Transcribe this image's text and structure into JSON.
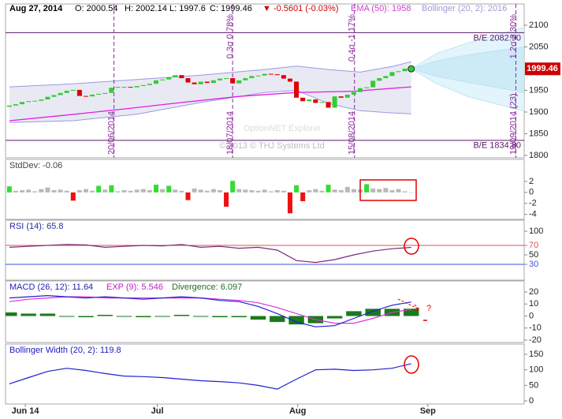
{
  "chart_data": [
    {
      "type": "candlestick",
      "header": [
        {
          "text": "Aug 27, 2014",
          "color": "#000000"
        },
        {
          "text": "O: 2000.54",
          "color": "#000000"
        },
        {
          "text": "H: 2002.14",
          "color": "#000000"
        },
        {
          "text": "L: 1997.6",
          "color": "#000000"
        },
        {
          "text": "C: 1999.46",
          "color": "#000000"
        },
        {
          "text": "▼ -0.5601 (-0.03%)",
          "color": "#d00000"
        },
        {
          "text": "EMA (50): 1958",
          "color": "#d040d0"
        },
        {
          "text": "Bollinger (20, 2): 2016",
          "color": "#9a9ad8"
        }
      ],
      "open": [
        1912,
        1915,
        1918,
        1923,
        1925,
        1926,
        1929,
        1935,
        1939,
        1944,
        1949,
        1951,
        1937,
        1936,
        1940,
        1942,
        1944,
        1956,
        1958,
        1958,
        1957,
        1960,
        1962,
        1965,
        1973,
        1975,
        1980,
        1985,
        1978,
        1968,
        1964,
        1970,
        1967,
        1973,
        1977,
        1978,
        1966,
        1973,
        1978,
        1983,
        1984,
        1988,
        1987,
        1985,
        1977,
        1970,
        1933,
        1925,
        1929,
        1921,
        1923,
        1910,
        1936,
        1933,
        1940,
        1946,
        1955,
        1957,
        1972,
        1978,
        1983,
        1992,
        1994,
        2000.54
      ],
      "close": [
        1915,
        1918,
        1923,
        1925,
        1926,
        1929,
        1935,
        1939,
        1944,
        1949,
        1951,
        1937,
        1936,
        1940,
        1942,
        1944,
        1956,
        1958,
        1958,
        1957,
        1960,
        1962,
        1965,
        1973,
        1975,
        1980,
        1985,
        1978,
        1968,
        1964,
        1970,
        1967,
        1973,
        1977,
        1978,
        1966,
        1973,
        1978,
        1983,
        1984,
        1988,
        1987,
        1985,
        1977,
        1970,
        1933,
        1925,
        1929,
        1921,
        1923,
        1910,
        1936,
        1933,
        1940,
        1946,
        1955,
        1957,
        1972,
        1978,
        1983,
        1992,
        1994,
        2000,
        1999.46
      ],
      "up_color": "#33cc33",
      "down_color": "#e00000",
      "last_price_color": "#cc0000",
      "ylim": [
        1794.5,
        2149
      ],
      "yticks": [
        1800,
        1850,
        1900,
        1950,
        2050,
        2100
      ],
      "ema": {
        "color": "#e020e0",
        "x": [
          0,
          9,
          18,
          27,
          36,
          45,
          54,
          63
        ],
        "values": [
          1880,
          1893,
          1907,
          1922,
          1936,
          1945,
          1948,
          1958
        ]
      },
      "bollinger": {
        "line_color": "#9a9ae0",
        "fill": "#e9e9f4",
        "x": [
          0,
          10,
          20,
          30,
          40,
          45,
          50,
          55,
          60,
          63
        ],
        "upper": [
          1958,
          1965,
          1975,
          1985,
          1998,
          2006,
          1998,
          1992,
          2005,
          2016
        ],
        "lower": [
          1876,
          1880,
          1895,
          1922,
          1945,
          1950,
          1920,
          1903,
          1898,
          1896
        ]
      },
      "cones": [
        {
          "fill": "#e2f5fc",
          "x": [
            63,
            67,
            72,
            80.7
          ],
          "upper": [
            1999.46,
            2035,
            2060,
            2095
          ],
          "lower": [
            1999.46,
            1965,
            1935,
            1902
          ]
        },
        {
          "fill": "#cdeaf7",
          "x": [
            63,
            67,
            72,
            80.7
          ],
          "upper": [
            1999.46,
            2018,
            2032,
            2050
          ],
          "lower": [
            1999.46,
            1982,
            1968,
            1945
          ]
        }
      ],
      "levels": [
        {
          "value": 2082.9,
          "label": "B/E 2082.90"
        },
        {
          "value": 1834.8,
          "label": "B/E 1834.80"
        }
      ],
      "level_color": "#5a1a6a",
      "expirations": [
        {
          "x": 16.4,
          "date": "20/06/2014"
        },
        {
          "x": 35.0,
          "date": "18/07/2014",
          "label": "0.3σ 0.78%"
        },
        {
          "x": 54.1,
          "date": "15/08/2014",
          "label": "0.4σ -1.17%"
        },
        {
          "x": 79.4,
          "date": "19/09/2014 (23)",
          "label": "1.2σ 2.30%"
        }
      ],
      "expiration_color": "#8a2a9a",
      "watermark": "OptionNET Explorer",
      "copyright": "© 2013 © THJ Systems Ltd"
    },
    {
      "type": "bar",
      "title": "StdDev: -0.06",
      "values": [
        1.1,
        0.3,
        0.4,
        0.5,
        0.2,
        0.6,
        0.9,
        0.4,
        0.5,
        0.3,
        -1.5,
        0.4,
        0.6,
        0.3,
        1.2,
        0.5,
        1.3,
        0.2,
        0.4,
        0.3,
        0.5,
        0.6,
        0.4,
        1.4,
        0.6,
        1.2,
        0.5,
        0.3,
        -1.4,
        0.7,
        0.5,
        0.3,
        0.6,
        0.4,
        -2.6,
        2.1,
        0.6,
        0.5,
        0.4,
        0.3,
        0.5,
        0.2,
        0.4,
        0.3,
        -3.8,
        1.3,
        -1.6,
        0.4,
        0.6,
        0.3,
        1.4,
        0.5,
        0.4,
        1.0,
        0.6,
        0.5,
        1.5,
        0.7,
        0.6,
        0.8,
        0.4,
        0.6,
        0.2,
        -0.06
      ],
      "threshold": 1,
      "up_color": "#33dd33",
      "down_color": "#ee1111",
      "neutral_color": "#b8b8b8",
      "ylim": [
        -4.9,
        6
      ],
      "yticks": [
        -4,
        -2,
        0,
        2
      ]
    },
    {
      "type": "line",
      "title": "RSI (14): 65.8",
      "title_color": "#2a2a9a",
      "x": [
        0,
        3,
        6,
        9,
        12,
        15,
        18,
        21,
        24,
        27,
        30,
        33,
        36,
        39,
        42,
        45,
        48,
        51,
        54,
        57,
        60,
        63
      ],
      "values": [
        66,
        68,
        70,
        72,
        71,
        66,
        68,
        70,
        69,
        72,
        66,
        68,
        64,
        66,
        60,
        38,
        34,
        40,
        50,
        58,
        63,
        65.8
      ],
      "color": "#7a2a7a",
      "levels": [
        {
          "value": 70,
          "color": "#e05050"
        },
        {
          "value": 30,
          "color": "#4050e0"
        }
      ],
      "ylim": [
        -3.3,
        123.3
      ],
      "yticks": [
        30,
        50,
        70,
        100
      ]
    },
    {
      "type": "macd",
      "titles": [
        {
          "text": "MACD (26, 12): 11.64",
          "color": "#2020c0"
        },
        {
          "text": "EXP (9): 5.546",
          "color": "#c020c0"
        },
        {
          "text": "Divergence: 6.097",
          "color": "#207020"
        }
      ],
      "x": [
        0,
        3,
        6,
        9,
        12,
        15,
        18,
        21,
        24,
        27,
        30,
        33,
        36,
        39,
        42,
        45,
        48,
        51,
        54,
        57,
        60,
        63
      ],
      "macd": {
        "color": "#2020d0",
        "values": [
          15,
          16,
          17,
          16,
          15,
          16,
          15,
          14,
          15,
          16,
          15,
          13,
          12,
          8,
          2,
          -5,
          -9,
          -8,
          -2,
          4,
          9,
          11.64
        ]
      },
      "signal": {
        "color": "#e030e0",
        "values": [
          12,
          14,
          15,
          16,
          16,
          15,
          15,
          15,
          15,
          15,
          15,
          14,
          13,
          11,
          7,
          2,
          -3,
          -6,
          -6,
          -2,
          3,
          5.546
        ]
      },
      "divergence": {
        "color": "#1a7a1a",
        "values": [
          3,
          2,
          2,
          0,
          -1,
          1,
          0,
          -1,
          0,
          1,
          0,
          -1,
          -1,
          -3,
          -5,
          -7,
          -6,
          -2,
          4,
          6,
          6,
          6.097
        ]
      },
      "annotation": "?",
      "ylim": [
        -22,
        29.2
      ],
      "yticks": [
        -20,
        -10,
        0,
        10,
        20
      ]
    },
    {
      "type": "line",
      "title": "Bollinger Width (20, 2): 119.8",
      "title_color": "#2020c0",
      "x": [
        0,
        3,
        6,
        9,
        12,
        15,
        18,
        21,
        24,
        27,
        30,
        33,
        36,
        39,
        42,
        45,
        48,
        51,
        54,
        57,
        60,
        63
      ],
      "values": [
        55,
        75,
        95,
        105,
        98,
        88,
        80,
        78,
        75,
        70,
        65,
        62,
        58,
        50,
        38,
        70,
        100,
        102,
        98,
        100,
        105,
        119.8
      ],
      "color": "#2020d0",
      "ylim": [
        -10,
        183
      ],
      "yticks": [
        0,
        50,
        100,
        150
      ],
      "xlim": [
        -0.6,
        80.7
      ],
      "xticks": [
        {
          "value": 2.5,
          "label": "Jun 14"
        },
        {
          "value": 23.2,
          "label": "Jul"
        },
        {
          "value": 45.2,
          "label": "Aug"
        },
        {
          "value": 65.6,
          "label": "Sep"
        }
      ]
    }
  ]
}
